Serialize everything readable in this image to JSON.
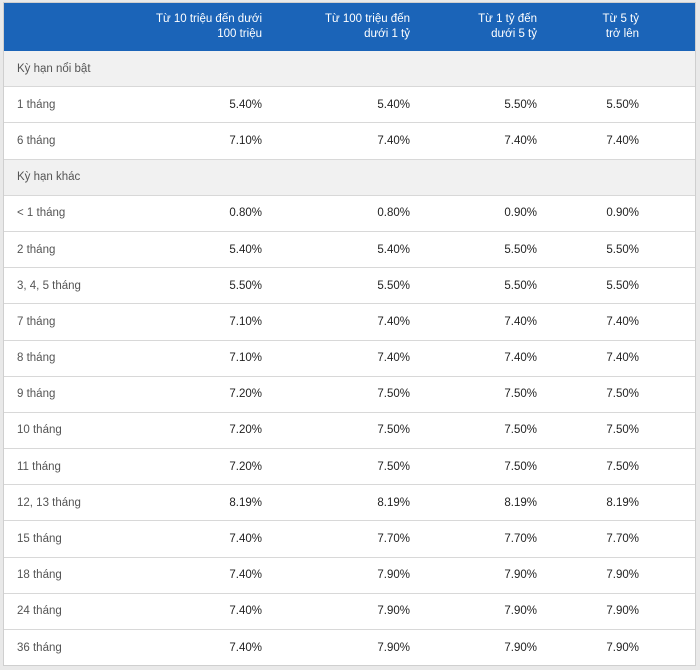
{
  "table": {
    "headers": [
      "",
      "Từ 10 triệu đến dưới\n100 triệu",
      "Từ 100 triệu đến\ndưới 1 tỷ",
      "Từ 1 tỷ đến\ndưới 5 tỷ",
      "Từ 5 tỷ\ntrở lên"
    ],
    "sections": [
      {
        "title": "Kỳ hạn nổi bật",
        "rows": [
          {
            "term": "1 tháng",
            "values": [
              "5.40%",
              "5.40%",
              "5.50%",
              "5.50%"
            ]
          },
          {
            "term": "6 tháng",
            "values": [
              "7.10%",
              "7.40%",
              "7.40%",
              "7.40%"
            ]
          }
        ]
      },
      {
        "title": "Kỳ hạn khác",
        "rows": [
          {
            "term": "< 1 tháng",
            "values": [
              "0.80%",
              "0.80%",
              "0.90%",
              "0.90%"
            ]
          },
          {
            "term": "2 tháng",
            "values": [
              "5.40%",
              "5.40%",
              "5.50%",
              "5.50%"
            ]
          },
          {
            "term": "3, 4, 5 tháng",
            "values": [
              "5.50%",
              "5.50%",
              "5.50%",
              "5.50%"
            ]
          },
          {
            "term": "7 tháng",
            "values": [
              "7.10%",
              "7.40%",
              "7.40%",
              "7.40%"
            ]
          },
          {
            "term": "8 tháng",
            "values": [
              "7.10%",
              "7.40%",
              "7.40%",
              "7.40%"
            ]
          },
          {
            "term": "9 tháng",
            "values": [
              "7.20%",
              "7.50%",
              "7.50%",
              "7.50%"
            ]
          },
          {
            "term": "10 tháng",
            "values": [
              "7.20%",
              "7.50%",
              "7.50%",
              "7.50%"
            ]
          },
          {
            "term": "11 tháng",
            "values": [
              "7.20%",
              "7.50%",
              "7.50%",
              "7.50%"
            ]
          },
          {
            "term": "12, 13 tháng",
            "values": [
              "8.19%",
              "8.19%",
              "8.19%",
              "8.19%"
            ]
          },
          {
            "term": "15 tháng",
            "values": [
              "7.40%",
              "7.70%",
              "7.70%",
              "7.70%"
            ]
          },
          {
            "term": "18 tháng",
            "values": [
              "7.40%",
              "7.90%",
              "7.90%",
              "7.90%"
            ]
          },
          {
            "term": "24 tháng",
            "values": [
              "7.40%",
              "7.90%",
              "7.90%",
              "7.90%"
            ]
          },
          {
            "term": "36 tháng",
            "values": [
              "7.40%",
              "7.90%",
              "7.90%",
              "7.90%"
            ]
          }
        ]
      }
    ]
  },
  "colors": {
    "header_bg": "#1b64b8",
    "header_text": "#ffffff",
    "section_bg": "#f1f1f1",
    "row_border": "#d8d8d8"
  }
}
